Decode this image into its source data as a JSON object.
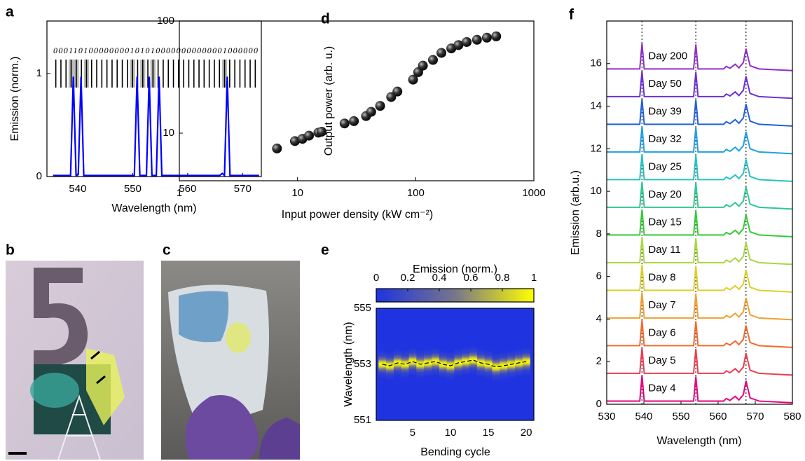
{
  "chart_data": [
    {
      "type": "line",
      "label": "a",
      "xlabel": "Wavelength (nm)",
      "ylabel": "Emission (norm.)",
      "xlim": [
        534.4,
        573.4
      ],
      "xticks": [
        540,
        550,
        560,
        570
      ],
      "ylim": [
        0,
        1.51
      ],
      "yticks": [
        0,
        1
      ],
      "color": "#0000ff",
      "barcode": "0001101000000001010100000000000001000000",
      "x": [
        535.5,
        538.7,
        539.2,
        539.7,
        540.1,
        540.6,
        541.1,
        550.3,
        550.8,
        551.3,
        552.5,
        553,
        553.5,
        554.3,
        554.8,
        555.3,
        565.8,
        566.3,
        566.7,
        567.2,
        567.7,
        573
      ],
      "values": [
        0.01,
        0.01,
        0.97,
        0.01,
        0.02,
        0.97,
        0.01,
        0.01,
        0.97,
        0.01,
        0.01,
        0.97,
        0.01,
        0.01,
        0.97,
        0.01,
        0.01,
        0.03,
        0.01,
        0.97,
        0.01,
        0.01
      ]
    },
    {
      "type": "image",
      "label": "b"
    },
    {
      "type": "image",
      "label": "c"
    },
    {
      "type": "scatter",
      "label": "d",
      "xlabel": "Input power density (kW cm⁻²)",
      "ylabel": "Output power (arb. u.)",
      "xlog": true,
      "ylog": true,
      "xlim": [
        1,
        1000
      ],
      "xticks": [
        1,
        10,
        100,
        1000
      ],
      "ylim": [
        3.76,
        100
      ],
      "yticks": [
        10,
        100
      ],
      "x": [
        6.7,
        9.5,
        11,
        12.5,
        15,
        16,
        25,
        30,
        38,
        42,
        50,
        62,
        70,
        95,
        105,
        115,
        140,
        165,
        200,
        230,
        270,
        330,
        400,
        480
      ],
      "values": [
        7.3,
        8.5,
        8.9,
        9.5,
        10.1,
        10.3,
        12.2,
        12.8,
        14.2,
        15.5,
        17.5,
        21,
        23.5,
        30,
        35,
        40,
        45,
        52,
        57,
        61,
        65,
        68,
        71,
        73
      ]
    },
    {
      "type": "heatmap",
      "label": "e",
      "xlabel": "Bending cycle",
      "ylabel": "Wavelength (nm)",
      "colorbar_label": "Emission (norm.)",
      "xlim": [
        0.2,
        21
      ],
      "xticks": [
        5,
        10,
        15,
        20
      ],
      "ylim": [
        551,
        555
      ],
      "yticks": [
        551,
        553,
        555
      ],
      "clim": [
        0,
        1
      ],
      "cticks": [
        0,
        0.2,
        0.4,
        0.6,
        0.8,
        1
      ],
      "colormap": [
        "#1f34e0",
        "#76768a",
        "#ffff00"
      ],
      "x": [
        1,
        2,
        3,
        4,
        5,
        6,
        7,
        8,
        9,
        10,
        11,
        12,
        13,
        14,
        15,
        16,
        17,
        18,
        19,
        20
      ],
      "values": [
        553.0,
        552.95,
        553.05,
        553.0,
        553.1,
        553.0,
        553.05,
        553.1,
        553.0,
        552.95,
        553.05,
        553.1,
        553.15,
        553.05,
        553.0,
        552.9,
        552.95,
        553.0,
        553.05,
        553.1
      ]
    },
    {
      "type": "spectra",
      "label": "f",
      "xlabel": "Wavelength (nm)",
      "ylabel": "Emission (arb.u.)",
      "xlim": [
        530,
        580
      ],
      "xticks": [
        530,
        540,
        550,
        560,
        570,
        580
      ],
      "ylim": [
        0,
        18
      ],
      "yticks": [
        0,
        2,
        4,
        6,
        8,
        10,
        12,
        14,
        16
      ],
      "vlines": [
        539.5,
        554,
        567.5
      ],
      "x": [
        530,
        538.9,
        539.5,
        540.1,
        553.4,
        554,
        554.6,
        561.5,
        562.2,
        563.2,
        564.6,
        565.6,
        566.8,
        567.5,
        568.6,
        571,
        580
      ],
      "series": [
        {
          "name": "Day 4",
          "color": "#e6007e",
          "values": [
            0.15,
            0.15,
            1.35,
            0.15,
            0.15,
            1.3,
            0.15,
            0.15,
            0.27,
            0.18,
            0.37,
            0.2,
            0.45,
            1.1,
            0.3,
            0.15,
            0.07
          ]
        },
        {
          "name": "Day 5",
          "color": "#f03c50",
          "values": [
            1.45,
            1.45,
            2.65,
            1.45,
            1.45,
            2.6,
            1.45,
            1.45,
            1.57,
            1.48,
            1.67,
            1.5,
            1.75,
            2.4,
            1.6,
            1.45,
            1.37
          ]
        },
        {
          "name": "Day 6",
          "color": "#f26a2a",
          "values": [
            2.75,
            2.75,
            3.95,
            2.75,
            2.75,
            3.9,
            2.75,
            2.75,
            2.87,
            2.78,
            2.97,
            2.8,
            3.05,
            3.7,
            2.9,
            2.75,
            2.67
          ]
        },
        {
          "name": "Day 7",
          "color": "#f0a030",
          "values": [
            4.05,
            4.05,
            5.25,
            4.05,
            4.05,
            5.2,
            4.05,
            4.05,
            4.17,
            4.08,
            4.27,
            4.1,
            4.35,
            5,
            4.2,
            4.05,
            3.97
          ]
        },
        {
          "name": "Day 8",
          "color": "#dccf2c",
          "values": [
            5.35,
            5.35,
            6.55,
            5.35,
            5.35,
            6.5,
            5.35,
            5.35,
            5.47,
            5.38,
            5.57,
            5.4,
            5.65,
            6.3,
            5.5,
            5.35,
            5.27
          ]
        },
        {
          "name": "Day 11",
          "color": "#a8d840",
          "values": [
            6.65,
            6.65,
            7.85,
            6.65,
            6.65,
            7.8,
            6.65,
            6.65,
            6.77,
            6.68,
            6.87,
            6.7,
            6.95,
            7.6,
            6.8,
            6.65,
            6.57
          ]
        },
        {
          "name": "Day 15",
          "color": "#33cc33",
          "values": [
            7.95,
            7.95,
            9.15,
            7.95,
            7.95,
            9.1,
            7.95,
            7.95,
            8.07,
            7.98,
            8.17,
            8,
            8.25,
            8.9,
            8.1,
            7.95,
            7.87
          ]
        },
        {
          "name": "Day 20",
          "color": "#2ec890",
          "values": [
            9.25,
            9.25,
            10.45,
            9.25,
            9.25,
            10.4,
            9.25,
            9.25,
            9.37,
            9.28,
            9.47,
            9.3,
            9.55,
            10.2,
            9.4,
            9.25,
            9.17
          ]
        },
        {
          "name": "Day 25",
          "color": "#27c2c2",
          "values": [
            10.55,
            10.55,
            11.75,
            10.55,
            10.55,
            11.7,
            10.55,
            10.55,
            10.67,
            10.58,
            10.77,
            10.6,
            10.85,
            11.5,
            10.7,
            10.55,
            10.47
          ]
        },
        {
          "name": "Day 32",
          "color": "#1ea0e6",
          "values": [
            11.85,
            11.85,
            13.05,
            11.85,
            11.85,
            13,
            11.85,
            11.85,
            11.97,
            11.88,
            12.07,
            11.9,
            12.15,
            12.8,
            12,
            11.85,
            11.77
          ]
        },
        {
          "name": "Day 39",
          "color": "#2060e0",
          "values": [
            13.15,
            13.15,
            14.35,
            13.15,
            13.15,
            14.3,
            13.15,
            13.15,
            13.27,
            13.18,
            13.37,
            13.2,
            13.45,
            14.1,
            13.3,
            13.15,
            13.07
          ]
        },
        {
          "name": "Day 50",
          "color": "#6a30d8",
          "values": [
            14.45,
            14.45,
            15.65,
            14.45,
            14.45,
            15.6,
            14.45,
            14.45,
            14.57,
            14.48,
            14.67,
            14.5,
            14.75,
            15.4,
            14.6,
            14.45,
            14.37
          ]
        },
        {
          "name": "Day 200",
          "color": "#9030c8",
          "values": [
            15.75,
            15.75,
            16.95,
            15.75,
            15.75,
            16.9,
            15.75,
            15.75,
            15.87,
            15.78,
            15.97,
            15.8,
            16.05,
            16.7,
            15.9,
            15.75,
            15.67
          ]
        }
      ]
    }
  ]
}
